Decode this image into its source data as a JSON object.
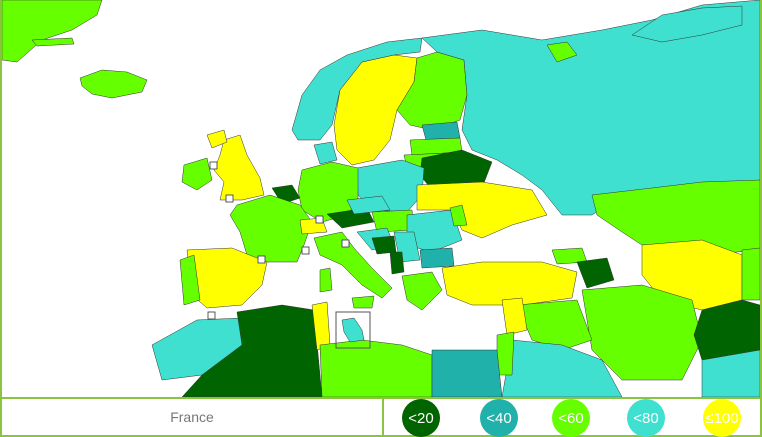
{
  "selected_country": "France",
  "legend": [
    {
      "label": "<20",
      "color": "#006400",
      "text_color": "#ffffff"
    },
    {
      "label": "<40",
      "color": "#20b2aa",
      "text_color": "#ffffff"
    },
    {
      "label": "<60",
      "color": "#66ff00",
      "text_color": "#ffffff"
    },
    {
      "label": "<80",
      "color": "#40e0d0",
      "text_color": "#ffffff"
    },
    {
      "label": "≤100",
      "color": "#ffff00",
      "text_color": "#ffffff"
    }
  ],
  "colors": {
    "sea": "#ffffff",
    "border": "#8bc53f"
  }
}
